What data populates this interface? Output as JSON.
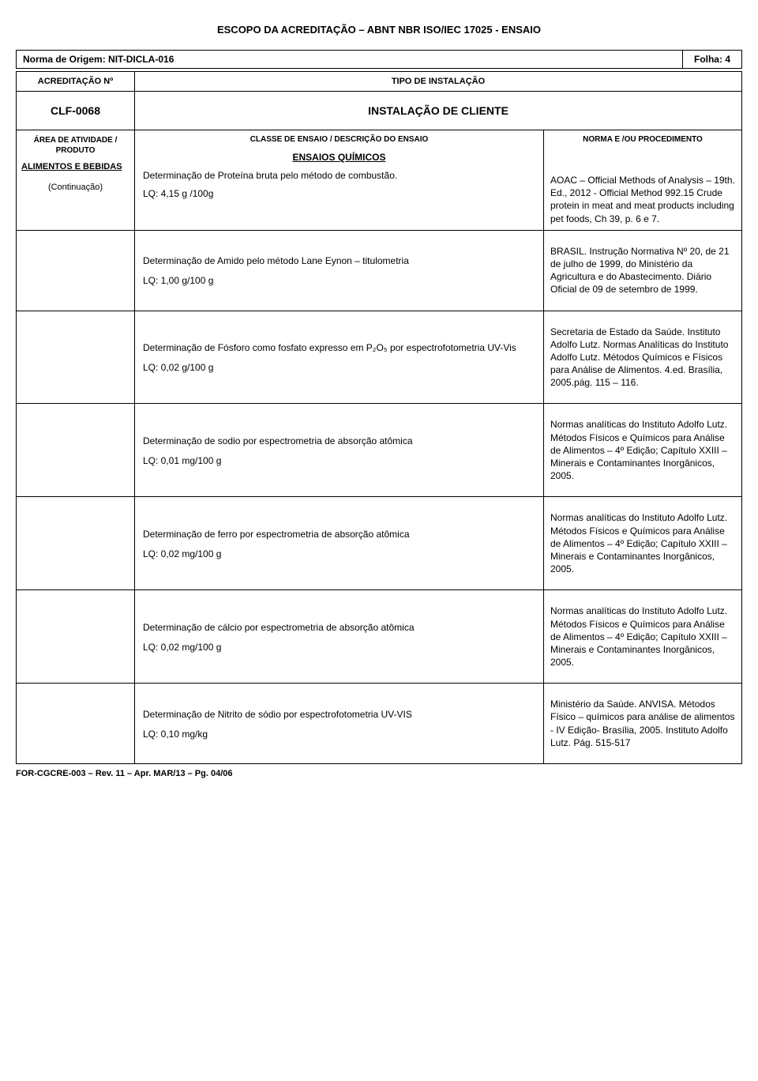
{
  "page": {
    "title": "ESCOPO DA ACREDITAÇÃO – ABNT NBR ISO/IEC 17025 - ENSAIO",
    "origem_label": "Norma de Origem: NIT-DICLA-016",
    "folha_label": "Folha: 4",
    "footer": "FOR-CGCRE-003 – Rev. 11 – Apr. MAR/13 – Pg. 04/06"
  },
  "header": {
    "acred_label": "ACREDITAÇÃO Nº",
    "acred_value": "CLF-0068",
    "tipo_label": "TIPO DE INSTALAÇÃO",
    "tipo_value": "INSTALAÇÃO DE CLIENTE",
    "area_label": "ÁREA DE ATIVIDADE / PRODUTO",
    "area_value": "ALIMENTOS E BEBIDAS",
    "continuacao": "(Continuação)",
    "classe_label": "CLASSE DE ENSAIO / DESCRIÇÃO DO ENSAIO",
    "norma_label": "NORMA E /OU PROCEDIMENTO",
    "section_title": "ENSAIOS QUÍMICOS"
  },
  "first_entry": {
    "desc": "Determinação de Proteína bruta pelo método de combustão.",
    "lq": "LQ: 4,15 g /100g",
    "norma": "AOAC – Official Methods of Analysis – 19th. Ed., 2012 - Official Method 992.15 Crude protein in meat and meat products including pet foods, Ch 39, p. 6 e 7."
  },
  "entries": [
    {
      "desc": "Determinação de Amido pelo método Lane Eynon – titulometria",
      "lq": "LQ:  1,00 g/100 g",
      "norma": "BRASIL. Instrução Normativa Nº 20, de 21 de julho de 1999, do Ministério da Agricultura e do Abastecimento. Diário Oficial de 09 de setembro de 1999."
    },
    {
      "desc_html": true,
      "desc": "Determinação de Fósforo como fosfato expresso em P₂O₅  por espectrofotometria UV-Vis",
      "lq": "LQ:  0,02 g/100 g",
      "norma": "Secretaria de Estado da Saúde. Instituto Adolfo Lutz. Normas Analíticas do Instituto Adolfo Lutz. Métodos Químicos e Físicos para Análise de Alimentos. 4.ed. Brasília, 2005.pág. 115 – 116."
    },
    {
      "desc": "Determinação de sodio por espectrometria de absorção atômica",
      "lq": "LQ: 0,01 mg/100 g",
      "norma": "Normas analíticas do Instituto Adolfo Lutz. Métodos Físicos e Químicos para Análise de Alimentos – 4º Edição; Capítulo XXIII – Minerais e Contaminantes Inorgânicos, 2005."
    },
    {
      "desc": "Determinação de ferro por espectrometria de absorção atômica",
      "lq": "LQ:  0,02 mg/100 g",
      "norma": "Normas analíticas do Instituto Adolfo Lutz. Métodos Físicos e Químicos para Análise de Alimentos – 4º Edição; Capítulo XXIII – Minerais e Contaminantes Inorgânicos, 2005."
    },
    {
      "desc": "Determinação de cálcio por espectrometria de absorção atômica",
      "lq": "LQ: 0,02 mg/100 g",
      "norma": "Normas analíticas do Instituto Adolfo Lutz. Métodos Físicos e Químicos para Análise de Alimentos – 4º Edição; Capítulo XXIII – Minerais e Contaminantes Inorgânicos, 2005."
    },
    {
      "desc": "Determinação de Nitrito de sódio por espectrofotometria UV-VIS",
      "lq": "LQ: 0,10 mg/kg",
      "norma": "Ministério da Saúde. ANVISA. Métodos Físico – químicos para análise de alimentos - IV Edição- Brasília, 2005. Instituto Adolfo Lutz. Pág. 515-517"
    }
  ]
}
